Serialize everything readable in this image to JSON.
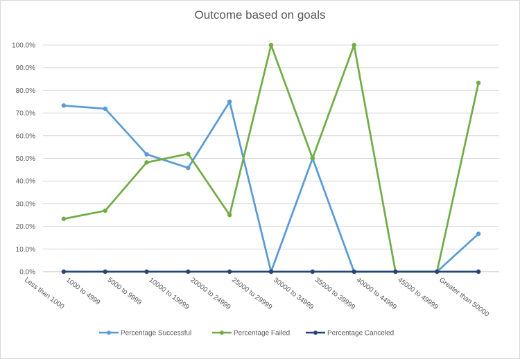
{
  "chart_data": {
    "type": "line",
    "title": "Outcome based on goals",
    "xlabel": "",
    "ylabel": "",
    "categories": [
      "Less than 1000",
      "1000 to 4999",
      "5000 to 9999",
      "10000 to 19999",
      "20000 to 24999",
      "25000 to 29999",
      "30000 to 34999",
      "35000 to 39999",
      "40000 to 44999",
      "45000 to 49999",
      "Greater than 50000"
    ],
    "ylim": [
      0,
      100
    ],
    "yticks": [
      "0.0%",
      "10.0%",
      "20.0%",
      "30.0%",
      "40.0%",
      "50.0%",
      "60.0%",
      "70.0%",
      "80.0%",
      "90.0%",
      "100.0%"
    ],
    "grid": true,
    "legend_position": "bottom",
    "series": [
      {
        "name": "Percentage Successful",
        "color": "#5b9bd5",
        "values": [
          73.3,
          71.9,
          51.8,
          45.8,
          75.0,
          0,
          50.0,
          0,
          0,
          0,
          16.7
        ]
      },
      {
        "name": "Percentage Failed",
        "color": "#70ad47",
        "values": [
          23.3,
          26.9,
          48.2,
          52.0,
          25.0,
          100,
          50.0,
          100,
          0,
          0,
          83.3
        ]
      },
      {
        "name": "Percentage Canceled",
        "color": "#264478",
        "values": [
          0,
          0,
          0,
          0,
          0,
          0,
          0,
          0,
          0,
          0,
          0
        ]
      }
    ]
  }
}
